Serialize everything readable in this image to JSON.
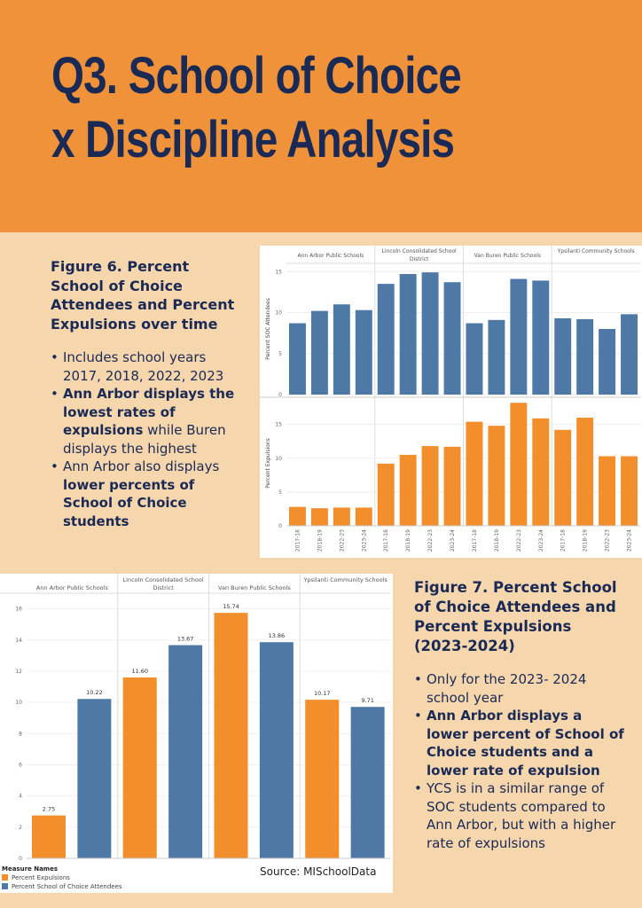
{
  "header": {
    "title_line1": "Q3. School of Choice",
    "title_line2": "x Discipline Analysis"
  },
  "colors": {
    "orange": "#f28e2b",
    "blue": "#4e79a7",
    "navy": "#1b2a55",
    "header_bg": "#f0923a",
    "page_bg": "#f5d6ad"
  },
  "figure6": {
    "title": "Figure 6. Percent School of Choice Attendees and Percent Expulsions over time",
    "bullets": [
      {
        "parts": [
          {
            "t": "Includes school years 2017, 2018, 2022, 2023",
            "b": false
          }
        ]
      },
      {
        "parts": [
          {
            "t": "Ann Arbor displays the lowest rates of expulsions",
            "b": true
          },
          {
            "t": " while Buren displays the highest",
            "b": false
          }
        ]
      },
      {
        "parts": [
          {
            "t": "Ann Arbor also displays ",
            "b": false
          },
          {
            "t": "lower percents of School of Choice students",
            "b": true
          }
        ]
      }
    ]
  },
  "figure7": {
    "title": "Figure 7. Percent School of Choice Attendees and Percent Expulsions (2023-2024)",
    "bullets": [
      {
        "parts": [
          {
            "t": "Only for the 2023- 2024 school year",
            "b": false
          }
        ]
      },
      {
        "parts": [
          {
            "t": "Ann Arbor displays a lower percent of School of Choice students and a lower rate of expulsion",
            "b": true
          }
        ]
      },
      {
        "parts": [
          {
            "t": "YCS is in a similar range of SOC students compared to Ann Arbor, but with a higher rate of expulsions",
            "b": false
          }
        ]
      }
    ]
  },
  "chart_data": [
    {
      "type": "bar",
      "panels": [
        "Ann Arbor Public Schools",
        "Lincoln Consolidated School District",
        "Van Buren Public Schools",
        "Ypsilanti Community Schools"
      ],
      "categories": [
        "2017-18",
        "2018-19",
        "2022-23",
        "2023-24"
      ],
      "series": [
        {
          "name": "Percent SOC Attendees",
          "color": "#4e79a7",
          "ylim": [
            0,
            16
          ],
          "yticks": [
            0,
            5,
            10,
            15
          ],
          "values": [
            [
              8.7,
              10.2,
              11.0,
              10.3
            ],
            [
              13.5,
              14.7,
              14.9,
              13.7
            ],
            [
              8.7,
              9.1,
              14.1,
              13.9
            ],
            [
              9.3,
              9.2,
              8.0,
              9.8
            ]
          ]
        },
        {
          "name": "Percent Expulsions",
          "color": "#f28e2b",
          "ylim": [
            0,
            18.5
          ],
          "yticks": [
            0,
            5,
            10,
            15
          ],
          "values": [
            [
              2.8,
              2.6,
              2.7,
              2.7
            ],
            [
              9.2,
              10.5,
              11.8,
              11.7
            ],
            [
              15.4,
              14.8,
              18.2,
              15.9
            ],
            [
              14.2,
              16.0,
              10.3,
              10.3
            ]
          ]
        }
      ],
      "ylabels": [
        "Percent SOC Attendees",
        "Percent Expulsions"
      ]
    },
    {
      "type": "bar",
      "categories": [
        "Ann Arbor Public Schools",
        "Lincoln Consolidated School District",
        "Van Buren Public Schools",
        "Ypsilanti Community Schools"
      ],
      "series": [
        {
          "name": "Percent Expulsions",
          "color": "#f28e2b",
          "values": [
            2.75,
            11.6,
            15.74,
            10.17
          ],
          "labels": [
            "2.75",
            "11.60",
            "15.74",
            "10.17"
          ]
        },
        {
          "name": "Percent School of Choice Attendees",
          "color": "#4e79a7",
          "values": [
            10.22,
            13.67,
            13.86,
            9.71
          ],
          "labels": [
            "10.22",
            "13.67",
            "13.86",
            "9.71"
          ]
        }
      ],
      "ylim": [
        0,
        17
      ],
      "yticks": [
        0,
        2,
        4,
        6,
        8,
        10,
        12,
        14,
        16
      ],
      "legend_title": "Measure Names",
      "legend": [
        "Percent Expulsions",
        "Percent School of Choice Attendees"
      ],
      "source": "Source: MISchoolData"
    }
  ]
}
